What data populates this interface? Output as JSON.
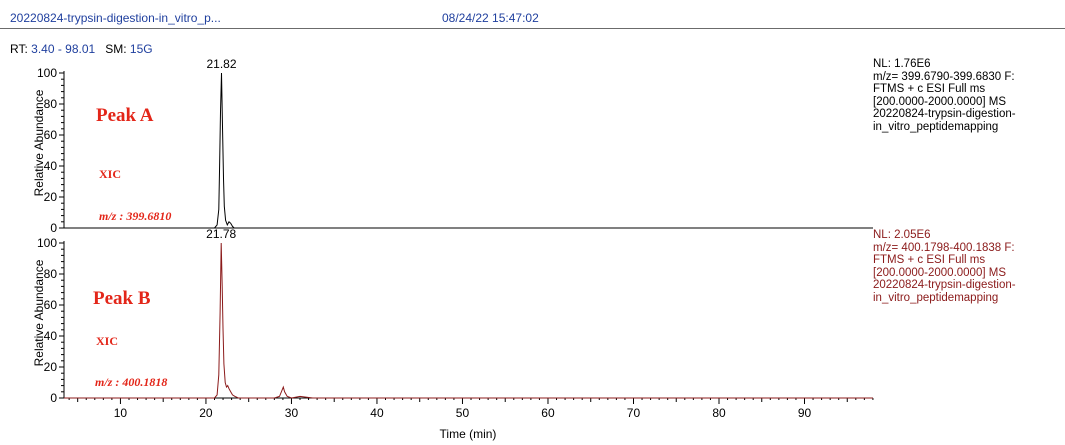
{
  "header": {
    "filename": "20220824-trypsin-digestion-in_vitro_p...",
    "datetime": "08/24/22 15:47:02"
  },
  "range_line": {
    "rt_label": "RT:",
    "rt_value": "3.40 - 98.01",
    "sm_label": "SM:",
    "sm_value": "15G"
  },
  "colors": {
    "link_blue": "#1f3f9e",
    "trace_a": "#000000",
    "trace_b": "#8b1a1a",
    "annotation_red": "#e32619"
  },
  "panels": [
    {
      "info_lines": [
        "NL: 1.76E6",
        "m/z= 399.6790-399.6830 F:",
        "FTMS + c ESI Full ms",
        "[200.0000-2000.0000]  MS",
        "20220824-trypsin-digestion-",
        "in_vitro_peptidemapping"
      ],
      "annotations": {
        "peak": "Peak A",
        "xic": "XIC",
        "mz": "m/z : 399.6810"
      }
    },
    {
      "info_lines": [
        "NL: 2.05E6",
        "m/z= 400.1798-400.1838 F:",
        "FTMS + c ESI Full ms",
        "[200.0000-2000.0000]  MS",
        "20220824-trypsin-digestion-",
        "in_vitro_peptidemapping"
      ],
      "annotations": {
        "peak": "Peak B",
        "xic": "XIC",
        "mz": "m/z : 400.1818"
      }
    }
  ],
  "chart_data": [
    {
      "type": "line",
      "ylabel": "Relative Abundance",
      "xlim": [
        3.4,
        98.01
      ],
      "ylim": [
        0,
        100
      ],
      "yticks": [
        0,
        20,
        40,
        60,
        80,
        100
      ],
      "peak_label": "21.82",
      "peak_rt": 21.82,
      "series": [
        {
          "color": "#000000",
          "x": [
            3.4,
            20.0,
            21.0,
            21.3,
            21.5,
            21.6,
            21.7,
            21.82,
            21.95,
            22.05,
            22.15,
            22.3,
            22.5,
            22.7,
            22.9,
            23.1,
            23.3,
            23.6,
            30.0,
            60.0,
            98.01
          ],
          "y": [
            0,
            0,
            0,
            2,
            12,
            40,
            75,
            100,
            62,
            32,
            14,
            5,
            2,
            4,
            3,
            1,
            0,
            0,
            0,
            0,
            0
          ]
        }
      ]
    },
    {
      "type": "line",
      "ylabel": "Relative Abundance",
      "xlabel": "Time (min)",
      "xlim": [
        3.4,
        98.01
      ],
      "ylim": [
        0,
        100
      ],
      "yticks": [
        0,
        20,
        40,
        60,
        80,
        100
      ],
      "xticks": [
        10,
        20,
        30,
        40,
        50,
        60,
        70,
        80,
        90
      ],
      "peak_label": "21.78",
      "peak_rt": 21.78,
      "series": [
        {
          "color": "#8b1a1a",
          "x": [
            3.4,
            20.0,
            21.0,
            21.3,
            21.5,
            21.65,
            21.78,
            21.9,
            22.0,
            22.1,
            22.25,
            22.4,
            22.55,
            22.7,
            22.9,
            23.1,
            23.4,
            23.8,
            28.0,
            28.6,
            28.9,
            29.05,
            29.2,
            29.5,
            30.0,
            31.0,
            32.5,
            35.0,
            40.0,
            50.0,
            60.0,
            70.0,
            80.0,
            90.0,
            98.01
          ],
          "y": [
            0,
            0,
            0,
            2,
            15,
            55,
            100,
            72,
            45,
            22,
            10,
            7,
            8,
            6,
            4,
            2,
            1,
            0,
            0,
            1,
            5,
            7,
            4,
            1,
            0,
            1,
            0,
            0,
            0,
            0,
            0,
            0,
            0,
            0,
            0
          ]
        }
      ]
    }
  ]
}
